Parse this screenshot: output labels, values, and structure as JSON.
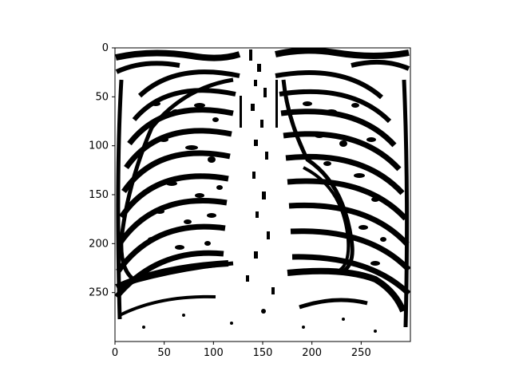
{
  "chart_data": {
    "type": "heatmap",
    "title": "",
    "xlabel": "",
    "ylabel": "",
    "xlim": [
      0,
      300
    ],
    "ylim": [
      300,
      0
    ],
    "image_width": 300,
    "image_height": 300,
    "colormap": "binary (black / white)",
    "content": "binarized chest X-ray: rib cage, spine, lungs, diaphragm",
    "x_ticks": [
      0,
      50,
      100,
      150,
      200,
      250
    ],
    "y_ticks": [
      0,
      50,
      100,
      150,
      200,
      250
    ],
    "x_tick_labels": [
      "0",
      "50",
      "100",
      "150",
      "200",
      "250"
    ],
    "y_tick_labels": [
      "0",
      "50",
      "100",
      "150",
      "200",
      "250"
    ],
    "grid": false,
    "legend": "none"
  },
  "colors": {
    "ink": "#000000",
    "paper": "#ffffff",
    "axes_frame": "#000000"
  }
}
